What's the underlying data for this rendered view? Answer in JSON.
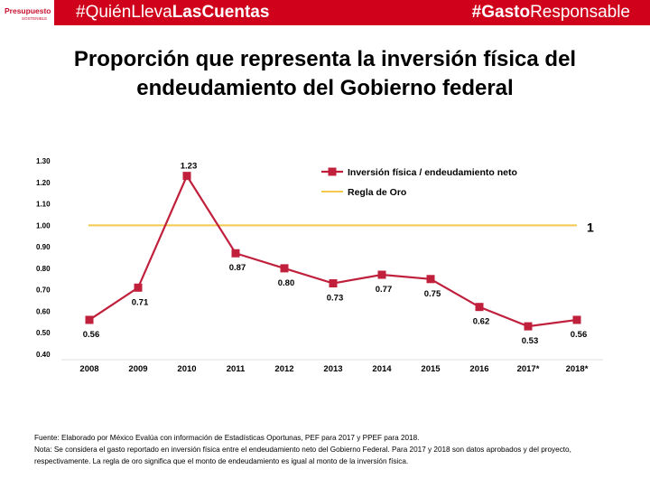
{
  "header": {
    "logo_text": "Presupuesto",
    "logo_sub": "SOSTENIBLE",
    "hashtag_left_prefix": "#QuiénLleva",
    "hashtag_left_bold": "LasCuentas",
    "hashtag_right_bold": "#Gasto",
    "hashtag_right_rest": "Responsable",
    "banner_color": "#d0021b"
  },
  "title_line1": "Proporción que representa la inversión física del",
  "title_line2": "endeudamiento del Gobierno federal",
  "chart_data": {
    "type": "line",
    "categories": [
      "2008",
      "2009",
      "2010",
      "2011",
      "2012",
      "2013",
      "2014",
      "2015",
      "2016",
      "2017*",
      "2018*"
    ],
    "series": [
      {
        "name": "Inversión física / endeudamiento neto",
        "values": [
          0.56,
          0.71,
          1.23,
          0.87,
          0.8,
          0.73,
          0.77,
          0.75,
          0.62,
          0.53,
          0.56
        ],
        "labels": [
          "0.56",
          "0.71",
          "1.23",
          "0.87",
          "0.80",
          "0.73",
          "0.77",
          "0.75",
          "0.62",
          "0.53",
          "0.56"
        ],
        "color": "#c0203c",
        "marker": "square"
      },
      {
        "name": "Regla de Oro",
        "value": 1.0,
        "end_label": "1",
        "color": "#f2c94c"
      }
    ],
    "y_ticks": [
      "0.40",
      "0.50",
      "0.60",
      "0.70",
      "0.80",
      "0.90",
      "1.00",
      "1.10",
      "1.20",
      "1.30"
    ],
    "ylim": [
      0.4,
      1.3
    ],
    "grid": false,
    "legend_position": "top-right"
  },
  "notes": {
    "source": "Fuente: Elaborado por México Evalúa con información de Estadísticas Oportunas, PEF para 2017 y PPEF para 2018.",
    "note": "Nota: Se considera el gasto reportado en inversión física entre el endeudamiento neto del Gobierno Federal. Para 2017 y 2018 son datos aprobados y del proyecto, respectivamente. La regla de oro significa que el monto de endeudamiento es igual al monto de la inversión física."
  }
}
